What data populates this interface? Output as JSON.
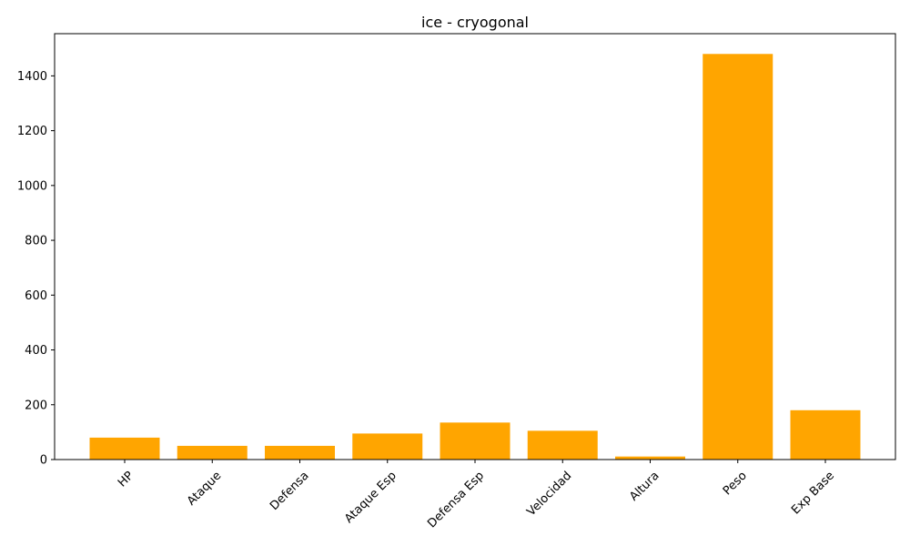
{
  "chart_data": {
    "type": "bar",
    "title": "ice - cryogonal",
    "xlabel": "",
    "ylabel": "",
    "categories": [
      "HP",
      "Ataque",
      "Defensa",
      "Ataque Esp",
      "Defensa Esp",
      "Velocidad",
      "Altura",
      "Peso",
      "Exp Base"
    ],
    "values": [
      80,
      50,
      50,
      95,
      135,
      105,
      11,
      1480,
      180
    ],
    "ylim": [
      0,
      1554
    ],
    "yticks": [
      0,
      200,
      400,
      600,
      800,
      1000,
      1200,
      1400
    ],
    "bar_color": "#ffa500",
    "grid": false,
    "legend": "none",
    "xtick_rotation_deg": 45
  }
}
